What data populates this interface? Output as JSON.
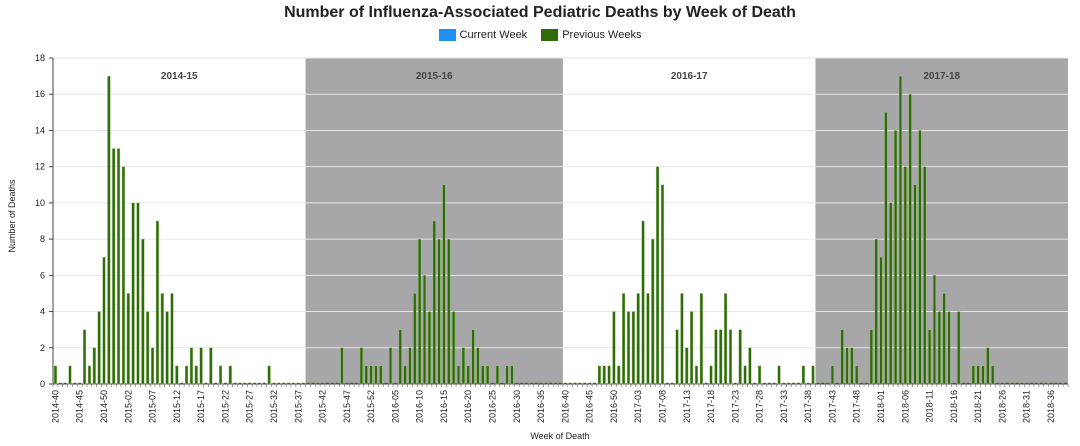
{
  "colors": {
    "current_week": "#1e8ff0",
    "previous_weeks": "#2f6b0b",
    "shade": "#a7a7a9",
    "bar_border": "#9cc47a"
  },
  "chart_data": {
    "type": "bar",
    "title": "Number of Influenza-Associated Pediatric Deaths by Week of Death",
    "xlabel": "Week of Death",
    "ylabel": "Number of Deaths",
    "ylim": [
      0,
      18
    ],
    "yticks": [
      0,
      2,
      4,
      6,
      8,
      10,
      12,
      14,
      16,
      18
    ],
    "grid": true,
    "legend_position": "top-center",
    "legend": [
      {
        "name": "Current Week",
        "color": "#1e8ff0"
      },
      {
        "name": "Previous Weeks",
        "color": "#2f6b0b"
      }
    ],
    "tick_labels": [
      "2014-40",
      "2014-45",
      "2014-50",
      "2015-02",
      "2015-07",
      "2015-12",
      "2015-17",
      "2015-22",
      "2015-27",
      "2015-32",
      "2015-37",
      "2015-42",
      "2015-47",
      "2015-52",
      "2016-05",
      "2016-10",
      "2016-15",
      "2016-20",
      "2016-25",
      "2016-30",
      "2016-35",
      "2016-40",
      "2016-45",
      "2016-50",
      "2017-03",
      "2017-08",
      "2017-13",
      "2017-18",
      "2017-23",
      "2017-28",
      "2017-33",
      "2017-38",
      "2017-43",
      "2017-48",
      "2018-01",
      "2018-06",
      "2018-11",
      "2018-16",
      "2018-21",
      "2018-26",
      "2018-31",
      "2018-36"
    ],
    "seasons": [
      {
        "label": "2014-15",
        "start": "2014-40",
        "weeks": 52,
        "shaded": false
      },
      {
        "label": "2015-16",
        "start": "2015-40",
        "weeks": 53,
        "shaded": true
      },
      {
        "label": "2016-17",
        "start": "2016-40",
        "weeks": 52,
        "shaded": false
      },
      {
        "label": "2017-18",
        "start": "2017-40",
        "weeks": 52,
        "shaded": true
      }
    ],
    "series": [
      {
        "name": "Previous Weeks",
        "values": [
          1,
          0,
          0,
          1,
          0,
          0,
          3,
          1,
          2,
          4,
          7,
          17,
          13,
          13,
          12,
          5,
          10,
          10,
          8,
          4,
          2,
          9,
          5,
          4,
          5,
          1,
          0,
          1,
          2,
          1,
          2,
          0,
          2,
          0,
          1,
          0,
          1,
          0,
          0,
          0,
          0,
          0,
          0,
          0,
          1,
          0,
          0,
          0,
          0,
          0,
          0,
          0,
          0,
          0,
          0,
          0,
          0,
          0,
          0,
          2,
          0,
          0,
          0,
          2,
          1,
          1,
          1,
          1,
          0,
          2,
          0,
          3,
          1,
          2,
          5,
          8,
          6,
          4,
          9,
          8,
          11,
          8,
          4,
          1,
          2,
          1,
          3,
          2,
          1,
          1,
          0,
          1,
          0,
          1,
          1,
          0,
          0,
          0,
          0,
          0,
          0,
          0,
          0,
          0,
          0,
          0,
          0,
          0,
          0,
          0,
          0,
          0,
          1,
          1,
          1,
          4,
          1,
          5,
          4,
          4,
          5,
          9,
          5,
          8,
          12,
          11,
          0,
          0,
          3,
          5,
          2,
          4,
          1,
          5,
          0,
          1,
          3,
          3,
          5,
          3,
          0,
          3,
          1,
          2,
          0,
          1,
          0,
          0,
          0,
          1,
          0,
          0,
          0,
          0,
          1,
          0,
          1,
          0,
          0,
          0,
          1,
          0,
          3,
          2,
          2,
          1,
          0,
          0,
          3,
          8,
          7,
          15,
          10,
          14,
          17,
          12,
          16,
          11,
          14,
          12,
          3,
          6,
          4,
          5,
          4,
          0,
          4,
          0,
          0,
          1,
          1,
          1,
          2,
          1,
          0,
          0,
          0,
          0,
          0,
          0,
          0,
          0,
          0,
          0,
          0,
          0,
          0,
          0,
          0
        ]
      }
    ]
  }
}
